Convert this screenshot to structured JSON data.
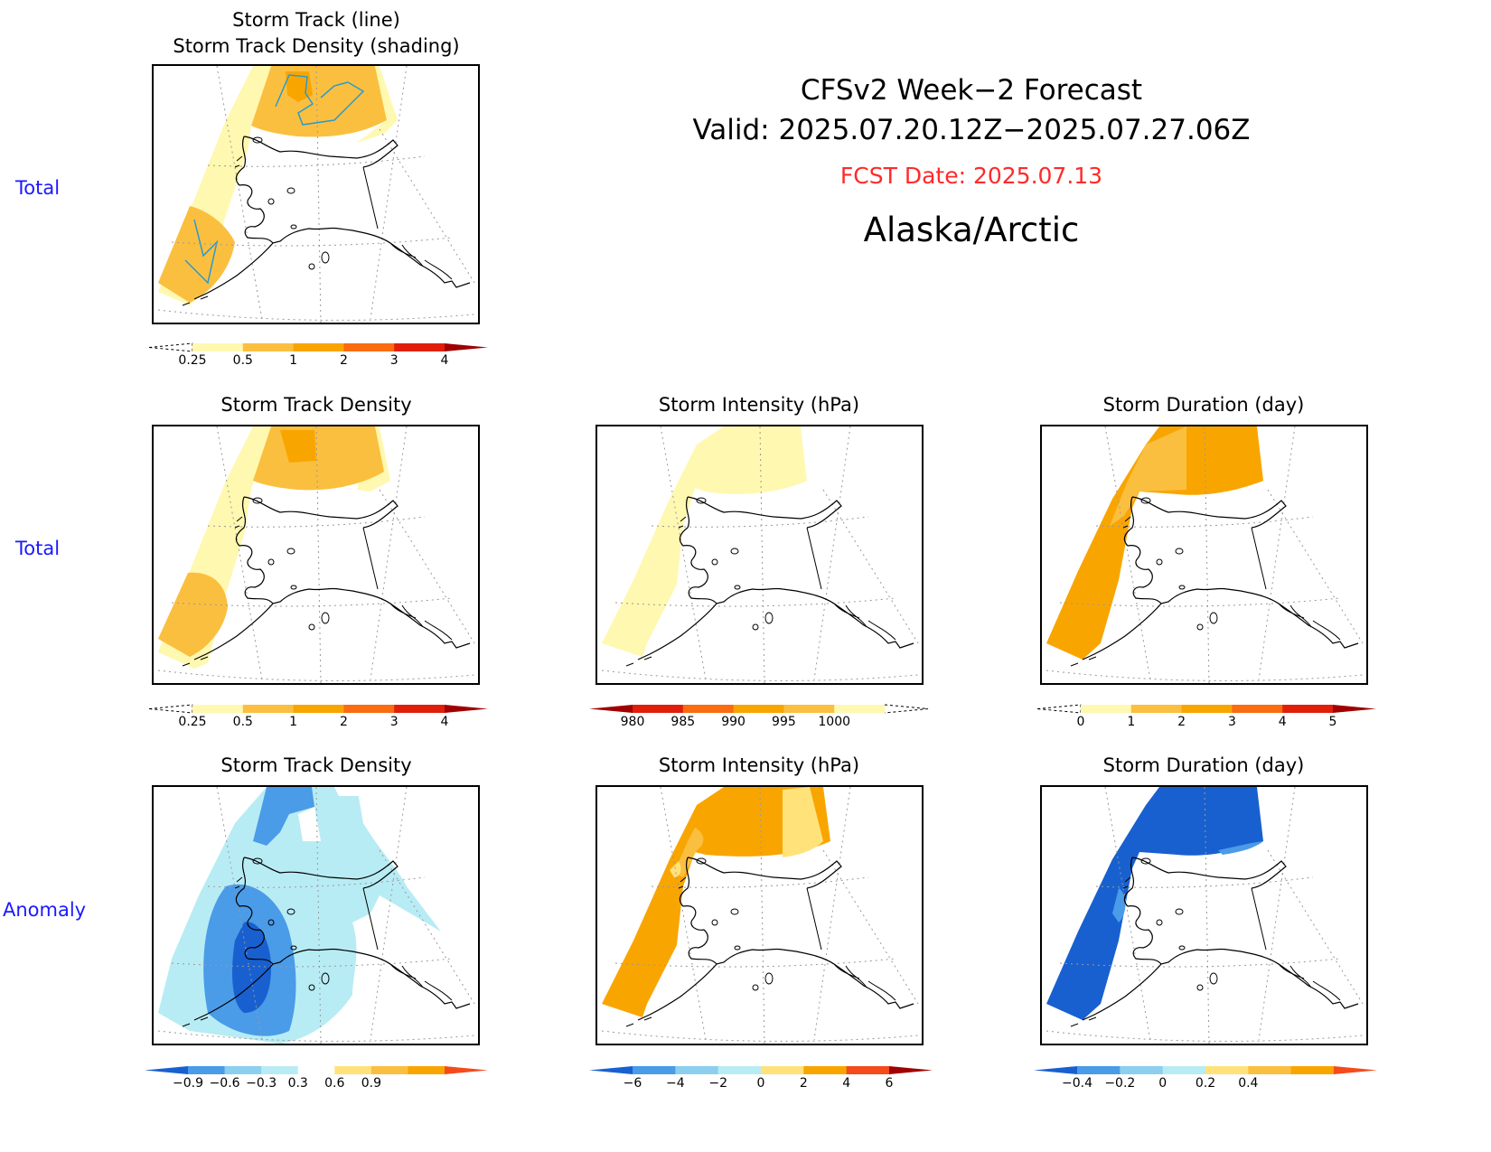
{
  "header": {
    "line1": "CFSv2 Week−2 Forecast",
    "line2": "Valid: 2025.07.20.12Z−2025.07.27.06Z",
    "fcst_date": "FCST Date: 2025.07.13",
    "region": "Alaska/Arctic",
    "fcst_color": "#ff2a2a"
  },
  "row_labels": {
    "row1": "Total",
    "row2": "Total",
    "row3": "Anomaly"
  },
  "panels": {
    "p1": {
      "title_line1": "Storm Track (line)",
      "title_line2": "Storm Track Density (shading)"
    },
    "p2": {
      "title": "Storm Track Density"
    },
    "p3": {
      "title": "Storm Intensity (hPa)"
    },
    "p4": {
      "title": "Storm Duration (day)"
    },
    "p5": {
      "title": "Storm Track Density"
    },
    "p6": {
      "title": "Storm Intensity (hPa)"
    },
    "p7": {
      "title": "Storm Duration (day)"
    }
  },
  "colorbars": {
    "density_total": {
      "labels": [
        "0.25",
        "0.5",
        "1",
        "2",
        "3",
        "4"
      ],
      "colors": [
        "#ffffff",
        "#fff8b0",
        "#fbbf3f",
        "#f9a500",
        "#fb6b10",
        "#e01e0a",
        "#a00000"
      ],
      "low_end": "dashed",
      "high_end": "arrow"
    },
    "intensity_total": {
      "labels": [
        "980",
        "985",
        "990",
        "995",
        "1000"
      ],
      "colors": [
        "#a00000",
        "#e01e0a",
        "#fb6b10",
        "#f9a500",
        "#fbbf3f",
        "#fff8b0",
        "#ffffff"
      ],
      "low_end": "arrow",
      "high_end": "dashed"
    },
    "duration_total": {
      "labels": [
        "0",
        "1",
        "2",
        "3",
        "4",
        "5"
      ],
      "colors": [
        "#ffffff",
        "#fff8b0",
        "#fbbf3f",
        "#f9a500",
        "#fb6b10",
        "#e01e0a",
        "#a00000"
      ],
      "low_end": "dashed",
      "high_end": "arrow"
    },
    "density_anom": {
      "labels": [
        "−0.9",
        "−0.6",
        "−0.3",
        "0.3",
        "0.6",
        "0.9"
      ],
      "colors": [
        "#1860d0",
        "#4a9be8",
        "#8ccfef",
        "#b8ecf4",
        "#ffffff",
        "#ffe27a",
        "#fbbf3f",
        "#f9a500",
        "#f54a1a"
      ],
      "low_end": "arrow",
      "high_end": "arrow"
    },
    "intensity_anom": {
      "labels": [
        "−6",
        "−4",
        "−2",
        "0",
        "2",
        "4",
        "6"
      ],
      "colors": [
        "#1860d0",
        "#4a9be8",
        "#8ccfef",
        "#b8ecf4",
        "#ffe27a",
        "#f9a500",
        "#f54a1a",
        "#a00000"
      ],
      "low_end": "arrow",
      "high_end": "arrow"
    },
    "duration_anom": {
      "labels": [
        "−0.4",
        "−0.2",
        "0",
        "0.2",
        "0.4"
      ],
      "colors": [
        "#1860d0",
        "#4a9be8",
        "#8ccfef",
        "#b8ecf4",
        "#ffe27a",
        "#fbbf3f",
        "#f9a500",
        "#f54a1a"
      ],
      "low_end": "arrow",
      "high_end": "arrow"
    }
  },
  "chart_data": [
    {
      "type": "heatmap",
      "title": "Storm Track (line) / Storm Track Density (shading)",
      "field": "total density",
      "levels": [
        0.25,
        0.5,
        1,
        2,
        3,
        4
      ]
    },
    {
      "type": "heatmap",
      "title": "Storm Track Density",
      "field": "total",
      "levels": [
        0.25,
        0.5,
        1,
        2,
        3,
        4
      ]
    },
    {
      "type": "heatmap",
      "title": "Storm Intensity (hPa)",
      "field": "total",
      "levels": [
        980,
        985,
        990,
        995,
        1000
      ]
    },
    {
      "type": "heatmap",
      "title": "Storm Duration (day)",
      "field": "total",
      "levels": [
        0,
        1,
        2,
        3,
        4,
        5
      ]
    },
    {
      "type": "heatmap",
      "title": "Storm Track Density",
      "field": "anomaly",
      "levels": [
        -0.9,
        -0.6,
        -0.3,
        0.3,
        0.6,
        0.9
      ]
    },
    {
      "type": "heatmap",
      "title": "Storm Intensity (hPa)",
      "field": "anomaly",
      "levels": [
        -6,
        -4,
        -2,
        0,
        2,
        4,
        6
      ]
    },
    {
      "type": "heatmap",
      "title": "Storm Duration (day)",
      "field": "anomaly",
      "levels": [
        -0.4,
        -0.2,
        0,
        0.2,
        0.4
      ]
    }
  ]
}
